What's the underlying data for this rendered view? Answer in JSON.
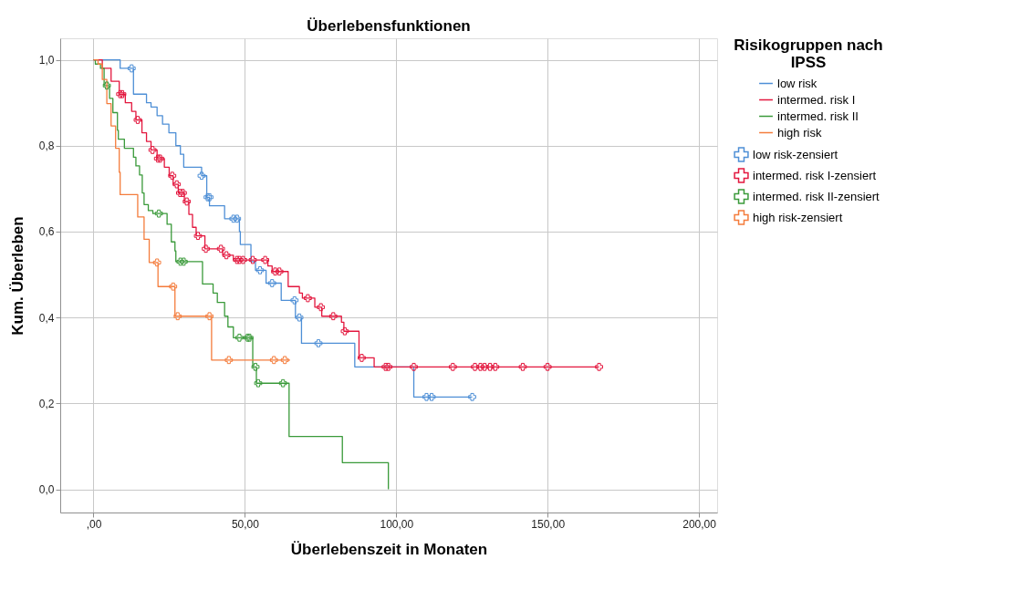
{
  "chart_data": {
    "type": "step",
    "title": "Überlebensfunktionen",
    "xlabel": "Überlebenszeit in Monaten",
    "ylabel": "Kum. Überleben",
    "legend_title": "Risikogruppen nach IPSS",
    "legend": "right",
    "grid": true,
    "xlim": [
      -11,
      206
    ],
    "ylim": [
      -0.054,
      1.05
    ],
    "xticks": [
      {
        "value": 0,
        "label": ",00"
      },
      {
        "value": 50,
        "label": "50,00"
      },
      {
        "value": 100,
        "label": "100,00"
      },
      {
        "value": 150,
        "label": "150,00"
      },
      {
        "value": 200,
        "label": "200,00"
      }
    ],
    "yticks": [
      {
        "value": 0,
        "label": "0,0"
      },
      {
        "value": 0.2,
        "label": "0,2"
      },
      {
        "value": 0.4,
        "label": "0,4"
      },
      {
        "value": 0.6,
        "label": "0,6"
      },
      {
        "value": 0.8,
        "label": "0,8"
      },
      {
        "value": 1,
        "label": "1,0"
      }
    ],
    "series": [
      {
        "name": "low risk",
        "color": "#4e8fd6",
        "type": "step",
        "x": [
          0,
          8.8,
          13.2,
          17.5,
          19,
          21,
          22.8,
          24.9,
          27.2,
          28.7,
          29.8,
          35.7,
          37.4,
          38.3,
          43.3,
          48.2,
          48.5,
          52,
          53.5,
          57,
          62,
          66.7,
          68.7,
          86.3,
          105.8,
          125.1
        ],
        "values": [
          1,
          0.98,
          0.92,
          0.9,
          0.89,
          0.87,
          0.85,
          0.83,
          0.8,
          0.78,
          0.75,
          0.73,
          0.68,
          0.66,
          0.63,
          0.6,
          0.57,
          0.53,
          0.51,
          0.48,
          0.44,
          0.4,
          0.34,
          0.285,
          0.215,
          0.215
        ]
      },
      {
        "name": "intermed. risk I",
        "color": "#e3173e",
        "type": "step",
        "x": [
          0,
          2.9,
          5.8,
          8.5,
          10.5,
          12.6,
          14,
          16,
          17.5,
          19,
          21,
          23.4,
          25,
          26.3,
          28,
          30,
          31.5,
          32.7,
          33.9,
          36.8,
          42.7,
          46.2,
          57.6,
          59,
          64.3,
          68,
          69,
          73.1,
          75.4,
          81.9,
          82.7,
          87.7,
          92.7,
          167
        ],
        "values": [
          1,
          0.98,
          0.95,
          0.92,
          0.9,
          0.88,
          0.86,
          0.83,
          0.81,
          0.79,
          0.77,
          0.75,
          0.73,
          0.71,
          0.69,
          0.67,
          0.64,
          0.61,
          0.59,
          0.56,
          0.545,
          0.534,
          0.52,
          0.507,
          0.472,
          0.457,
          0.445,
          0.424,
          0.403,
          0.389,
          0.368,
          0.306,
          0.285,
          0.285
        ]
      },
      {
        "name": "intermed. risk II",
        "color": "#3a9a3a",
        "type": "step",
        "x": [
          0,
          0.6,
          2.3,
          3.5,
          5.3,
          6.4,
          7.9,
          8.2,
          10.2,
          13.2,
          14,
          15.2,
          16.1,
          16.7,
          18.1,
          19.6,
          24.3,
          25.7,
          26.9,
          27.2,
          36,
          39.5,
          40.9,
          43.3,
          44.4,
          46.2,
          52.6,
          53.8,
          64.6,
          82.2,
          97.4
        ],
        "values": [
          1,
          0.99,
          0.98,
          0.94,
          0.91,
          0.877,
          0.836,
          0.815,
          0.794,
          0.773,
          0.753,
          0.732,
          0.69,
          0.663,
          0.649,
          0.642,
          0.617,
          0.576,
          0.555,
          0.53,
          0.478,
          0.457,
          0.435,
          0.403,
          0.378,
          0.353,
          0.285,
          0.247,
          0.123,
          0.062,
          0
        ]
      },
      {
        "name": "high risk",
        "color": "#f47c3c",
        "type": "step",
        "x": [
          0,
          1.5,
          2.9,
          4.4,
          5.8,
          7.3,
          8.5,
          8.8,
          14.6,
          16.7,
          18.4,
          21.3,
          26.9,
          39,
          64.9
        ],
        "values": [
          1,
          0.99,
          0.954,
          0.898,
          0.846,
          0.794,
          0.738,
          0.686,
          0.634,
          0.582,
          0.528,
          0.472,
          0.403,
          0.301,
          0.301
        ]
      },
      {
        "name": "low risk-zensiert",
        "color": "#4e8fd6",
        "type": "scatter",
        "marker": "cross",
        "x": [
          12.6,
          35.7,
          37.7,
          38.3,
          46.2,
          47.4,
          55,
          59,
          66.4,
          68,
          74.3,
          110,
          111.7,
          125.1
        ],
        "values": [
          0.98,
          0.73,
          0.68,
          0.68,
          0.63,
          0.63,
          0.51,
          0.48,
          0.44,
          0.4,
          0.34,
          0.215,
          0.215,
          0.215
        ]
      },
      {
        "name": "intermed. risk I-zensiert",
        "color": "#e3173e",
        "type": "scatter",
        "marker": "cross",
        "x": [
          8.8,
          9.5,
          14.6,
          19.5,
          21.3,
          22,
          26,
          27.5,
          28.6,
          29.5,
          30.8,
          34.5,
          37.1,
          42.1,
          43.9,
          47.4,
          48.2,
          49.4,
          52.6,
          56.7,
          60,
          61.4,
          70.8,
          75.1,
          79.2,
          83,
          88.6,
          96.5,
          97.4,
          105.8,
          118.7,
          126,
          127.8,
          129.2,
          131,
          132.7,
          141.8,
          150,
          167
        ],
        "values": [
          0.92,
          0.92,
          0.86,
          0.79,
          0.77,
          0.77,
          0.73,
          0.71,
          0.69,
          0.69,
          0.67,
          0.59,
          0.56,
          0.56,
          0.545,
          0.534,
          0.534,
          0.534,
          0.534,
          0.534,
          0.507,
          0.507,
          0.445,
          0.424,
          0.403,
          0.368,
          0.306,
          0.285,
          0.285,
          0.285,
          0.285,
          0.285,
          0.285,
          0.285,
          0.285,
          0.285,
          0.285,
          0.285,
          0.285
        ]
      },
      {
        "name": "intermed. risk II-zensiert",
        "color": "#3a9a3a",
        "type": "scatter",
        "marker": "cross",
        "x": [
          4.4,
          21.6,
          28.7,
          29.8,
          48.2,
          50.9,
          51.5,
          53.5,
          54.4,
          62.6
        ],
        "values": [
          0.94,
          0.642,
          0.53,
          0.53,
          0.353,
          0.353,
          0.353,
          0.285,
          0.247,
          0.247
        ]
      },
      {
        "name": "high risk-zensiert",
        "color": "#f47c3c",
        "type": "scatter",
        "marker": "cross",
        "x": [
          21,
          26.3,
          27.8,
          38.3,
          44.7,
          59.6,
          63.2
        ],
        "values": [
          0.528,
          0.472,
          0.403,
          0.403,
          0.301,
          0.301,
          0.301
        ]
      }
    ]
  }
}
